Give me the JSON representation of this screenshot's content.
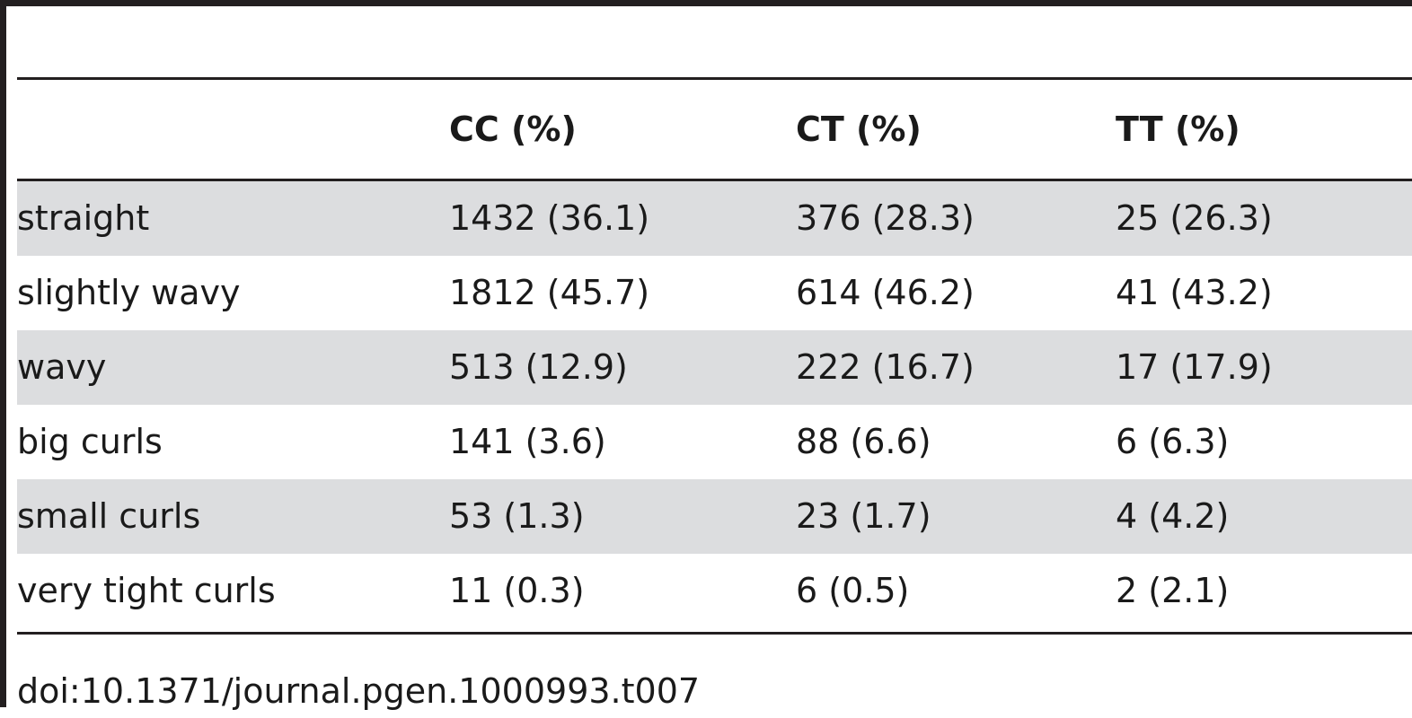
{
  "table": {
    "columns": [
      "",
      "CC (%)",
      "CT (%)",
      "TT (%)"
    ],
    "rows": [
      {
        "label": "straight",
        "cc": "1432 (36.1)",
        "ct": "376 (28.3)",
        "tt": "25 (26.3)"
      },
      {
        "label": "slightly wavy",
        "cc": "1812 (45.7)",
        "ct": "614 (46.2)",
        "tt": "41 (43.2)"
      },
      {
        "label": "wavy",
        "cc": "513 (12.9)",
        "ct": "222 (16.7)",
        "tt": "17 (17.9)"
      },
      {
        "label": "big curls",
        "cc": "141 (3.6)",
        "ct": "88 (6.6)",
        "tt": "6 (6.3)"
      },
      {
        "label": "small curls",
        "cc": "53 (1.3)",
        "ct": "23 (1.7)",
        "tt": "4 (4.2)"
      },
      {
        "label": "very tight curls",
        "cc": "11 (0.3)",
        "ct": "6 (0.5)",
        "tt": "2 (2.1)"
      }
    ]
  },
  "footer": {
    "doi": "doi:10.1371/journal.pgen.1000993.t007"
  },
  "colors": {
    "rule": "#231f20",
    "shaded_row": "#dcdddf",
    "text": "#1a1a1a"
  }
}
